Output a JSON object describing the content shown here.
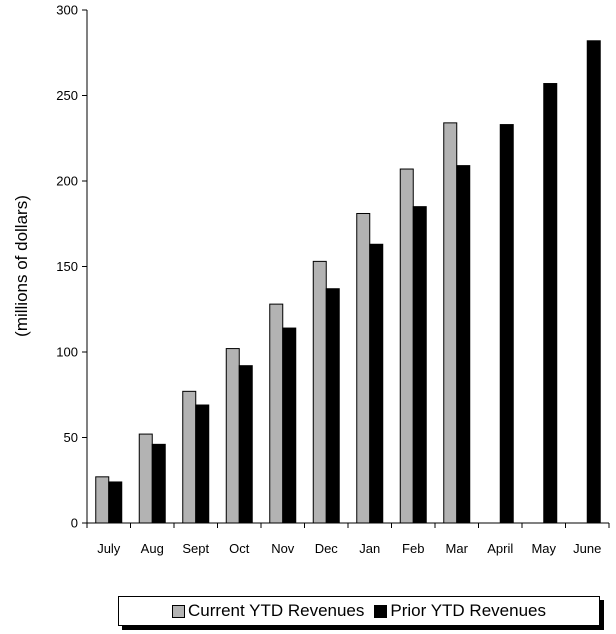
{
  "chart_data": {
    "type": "bar",
    "title": "",
    "xlabel": "",
    "ylabel": "(millions of dollars)",
    "ylim": [
      0,
      300
    ],
    "yticks": [
      0,
      50,
      100,
      150,
      200,
      250,
      300
    ],
    "categories": [
      "July",
      "Aug",
      "Sept",
      "Oct",
      "Nov",
      "Dec",
      "Jan",
      "Feb",
      "Mar",
      "April",
      "May",
      "June"
    ],
    "series": [
      {
        "name": "Current YTD Revenues",
        "color": "#b3b3b3",
        "values": [
          27,
          52,
          77,
          102,
          128,
          153,
          181,
          207,
          234,
          null,
          null,
          null
        ]
      },
      {
        "name": "Prior YTD Revenues",
        "color": "#000000",
        "values": [
          24,
          46,
          69,
          92,
          114,
          137,
          163,
          185,
          209,
          233,
          257,
          282
        ]
      }
    ],
    "grid": false,
    "legend_position": "bottom"
  }
}
